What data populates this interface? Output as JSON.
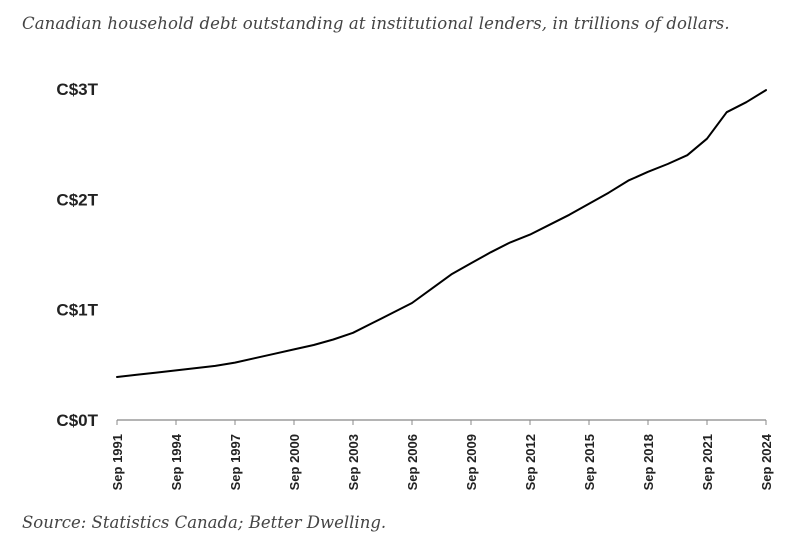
{
  "subtitle": "Canadian household debt outstanding at institutional lenders, in trillions of dollars.",
  "source": "Source: Statistics Canada; Better Dwelling.",
  "chart_data": {
    "type": "line",
    "title": "",
    "xlabel": "",
    "ylabel": "",
    "ylim": [
      0,
      3
    ],
    "y_ticks": [
      {
        "value": 0,
        "label": "C$0T"
      },
      {
        "value": 1,
        "label": "C$1T"
      },
      {
        "value": 2,
        "label": "C$2T"
      },
      {
        "value": 3,
        "label": "C$3T"
      }
    ],
    "x_ticks": [
      "Sep 1991",
      "Sep 1994",
      "Sep 1997",
      "Sep 2000",
      "Sep 2003",
      "Sep 2006",
      "Sep 2009",
      "Sep 2012",
      "Sep 2015",
      "Sep 2018",
      "Sep 2021",
      "Sep 2024"
    ],
    "grid": false,
    "legend": "none",
    "line_color": "#000000",
    "series": [
      {
        "x": [
          "Sep 1991",
          "Sep 1992",
          "Sep 1993",
          "Sep 1994",
          "Sep 1995",
          "Sep 1996",
          "Sep 1997",
          "Sep 1998",
          "Sep 1999",
          "Sep 2000",
          "Sep 2001",
          "Sep 2002",
          "Sep 2003",
          "Sep 2004",
          "Sep 2005",
          "Sep 2006",
          "Sep 2007",
          "Sep 2008",
          "Sep 2009",
          "Sep 2010",
          "Sep 2011",
          "Sep 2012",
          "Sep 2013",
          "Sep 2014",
          "Sep 2015",
          "Sep 2016",
          "Sep 2017",
          "Sep 2018",
          "Sep 2019",
          "Sep 2020",
          "Sep 2021",
          "Sep 2022",
          "Sep 2023",
          "Sep 2024"
        ],
        "values": [
          0.39,
          0.41,
          0.43,
          0.45,
          0.47,
          0.49,
          0.52,
          0.56,
          0.6,
          0.64,
          0.68,
          0.73,
          0.79,
          0.88,
          0.97,
          1.06,
          1.19,
          1.32,
          1.42,
          1.52,
          1.61,
          1.68,
          1.77,
          1.86,
          1.96,
          2.06,
          2.17,
          2.25,
          2.32,
          2.4,
          2.55,
          2.79,
          2.88,
          2.99
        ]
      }
    ]
  }
}
